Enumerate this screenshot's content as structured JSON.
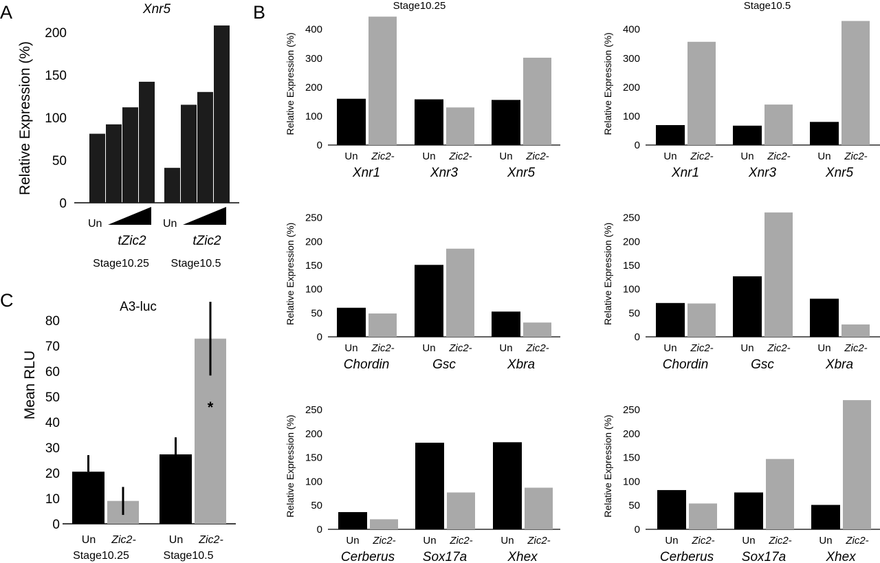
{
  "colors": {
    "un": "#000000",
    "zic2": "#a9a9a9",
    "bar_a": "#1c1c1c",
    "axis": "#000000"
  },
  "chart_data": [
    {
      "id": "A",
      "panel_label": "A",
      "type": "bar",
      "title": "Xnr5",
      "ylabel": "Relative Expression (%)",
      "ylim": [
        0,
        200
      ],
      "yticks": [
        0,
        50,
        100,
        150,
        200
      ],
      "groups": [
        {
          "stage": "Stage10.25",
          "un_label": "Un",
          "treatment_label": "tZic2",
          "values": [
            81,
            92,
            112,
            142
          ]
        },
        {
          "stage": "Stage10.5",
          "un_label": "Un",
          "treatment_label": "tZic2",
          "values": [
            41,
            115,
            130,
            208
          ]
        }
      ],
      "note": "first bar in each group is Un; following three are increasing doses of tZic2 (wedge)"
    },
    {
      "id": "B1",
      "panel_label": "B",
      "type": "bar",
      "title": "Stage10.25",
      "ylabel": "Relative Expression (%)",
      "ylim": [
        0,
        450
      ],
      "yticks": [
        0,
        100,
        200,
        300,
        400
      ],
      "categories": [
        "Xnr1",
        "Xnr3",
        "Xnr5"
      ],
      "sublabels": [
        "Un",
        "Zic2-"
      ],
      "series": [
        {
          "name": "Un",
          "values": [
            160,
            158,
            156
          ]
        },
        {
          "name": "Zic2-",
          "values": [
            444,
            130,
            302
          ]
        }
      ]
    },
    {
      "id": "B2",
      "type": "bar",
      "title": "Stage10.5",
      "ylabel": "Relative Expression (%)",
      "ylim": [
        0,
        450
      ],
      "yticks": [
        0,
        100,
        200,
        300,
        400
      ],
      "categories": [
        "Xnr1",
        "Xnr3",
        "Xnr5"
      ],
      "sublabels": [
        "Un",
        "Zic2-"
      ],
      "series": [
        {
          "name": "Un",
          "values": [
            69,
            67,
            80
          ]
        },
        {
          "name": "Zic2-",
          "values": [
            357,
            140,
            429
          ]
        }
      ]
    },
    {
      "id": "B3",
      "type": "bar",
      "title": "",
      "ylabel": "Relative Expression (%)",
      "ylim": [
        0,
        260
      ],
      "yticks": [
        0,
        50,
        100,
        150,
        200,
        250
      ],
      "categories": [
        "Chordin",
        "Gsc",
        "Xbra"
      ],
      "sublabels": [
        "Un",
        "Zic2-"
      ],
      "series": [
        {
          "name": "Un",
          "values": [
            61,
            151,
            53
          ]
        },
        {
          "name": "Zic2-",
          "values": [
            49,
            185,
            30
          ]
        }
      ]
    },
    {
      "id": "B4",
      "type": "bar",
      "title": "",
      "ylabel": "Relative Expression (%)",
      "ylim": [
        0,
        260
      ],
      "yticks": [
        0,
        50,
        100,
        150,
        200,
        250
      ],
      "categories": [
        "Chordin",
        "Gsc",
        "Xbra"
      ],
      "sublabels": [
        "Un",
        "Zic2-"
      ],
      "series": [
        {
          "name": "Un",
          "values": [
            71,
            127,
            80
          ]
        },
        {
          "name": "Zic2-",
          "values": [
            70,
            261,
            26
          ]
        }
      ]
    },
    {
      "id": "B5",
      "type": "bar",
      "title": "",
      "ylabel": "Relative Expression (%)",
      "ylim": [
        0,
        260
      ],
      "yticks": [
        0,
        50,
        100,
        150,
        200,
        250
      ],
      "categories": [
        "Cerberus",
        "Sox17a",
        "Xhex"
      ],
      "sublabels": [
        "Un",
        "Zic2-"
      ],
      "series": [
        {
          "name": "Un",
          "values": [
            36,
            181,
            182
          ]
        },
        {
          "name": "Zic2-",
          "values": [
            21,
            77,
            87
          ]
        }
      ]
    },
    {
      "id": "B6",
      "type": "bar",
      "title": "",
      "ylabel": "Relative Expression (%)",
      "ylim": [
        0,
        260
      ],
      "yticks": [
        0,
        50,
        100,
        150,
        200,
        250
      ],
      "categories": [
        "Cerberus",
        "Sox17a",
        "Xhex"
      ],
      "sublabels": [
        "Un",
        "Zic2-"
      ],
      "series": [
        {
          "name": "Un",
          "values": [
            82,
            77,
            51
          ]
        },
        {
          "name": "Zic2-",
          "values": [
            54,
            147,
            270
          ]
        }
      ]
    },
    {
      "id": "C",
      "panel_label": "C",
      "type": "bar",
      "title": "A3-luc",
      "ylabel": "Mean RLU",
      "ylim": [
        0,
        80
      ],
      "yticks": [
        0,
        10,
        20,
        30,
        40,
        50,
        60,
        70,
        80
      ],
      "categories": [
        "Stage10.25",
        "Stage10.5"
      ],
      "sublabels": [
        "Un",
        "Zic2-"
      ],
      "series": [
        {
          "name": "Un",
          "values": [
            20.5,
            27.3
          ],
          "error": [
            6.5,
            6.7
          ]
        },
        {
          "name": "Zic2-",
          "values": [
            9,
            72.8
          ],
          "error": [
            5.5,
            14.5
          ]
        }
      ],
      "annotation": {
        "text": "*",
        "target": "Stage10.5 Zic2-"
      }
    }
  ]
}
